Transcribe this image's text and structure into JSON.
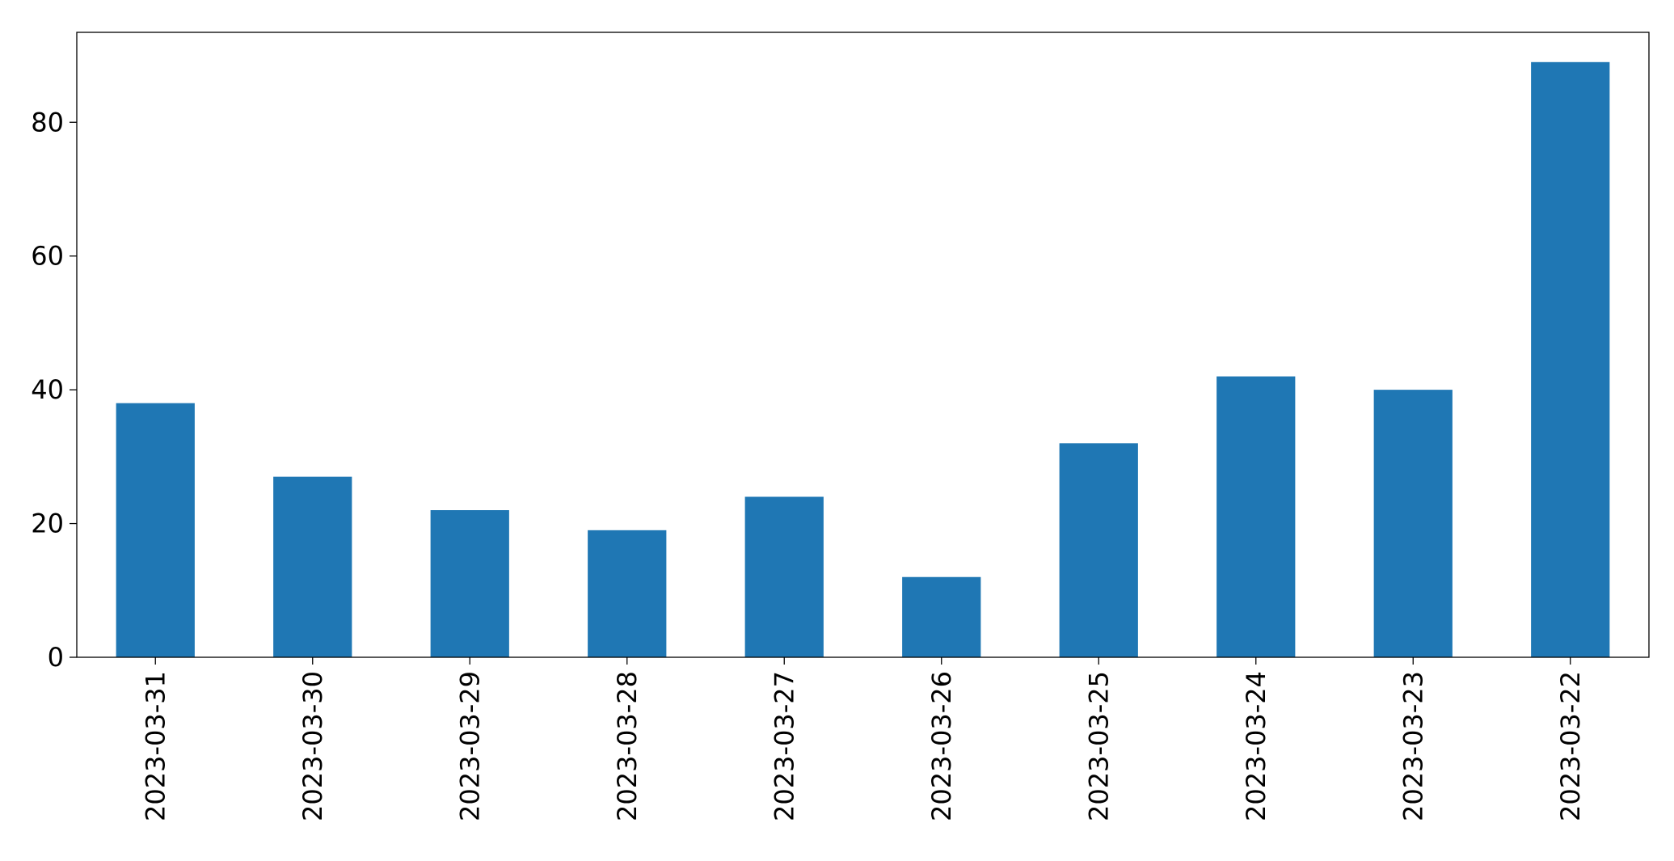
{
  "chart_data": {
    "type": "bar",
    "title": "",
    "xlabel": "",
    "ylabel": "",
    "categories": [
      "2023-03-31",
      "2023-03-30",
      "2023-03-29",
      "2023-03-28",
      "2023-03-27",
      "2023-03-26",
      "2023-03-25",
      "2023-03-24",
      "2023-03-23",
      "2023-03-22"
    ],
    "values": [
      38,
      27,
      22,
      19,
      24,
      12,
      32,
      42,
      40,
      89
    ],
    "ylim": [
      0,
      93.45
    ],
    "yticks": [
      0,
      20,
      40,
      60,
      80
    ],
    "grid": false,
    "legend": "none",
    "colors": {
      "bar": "#1f77b4",
      "axis": "#000000"
    }
  }
}
